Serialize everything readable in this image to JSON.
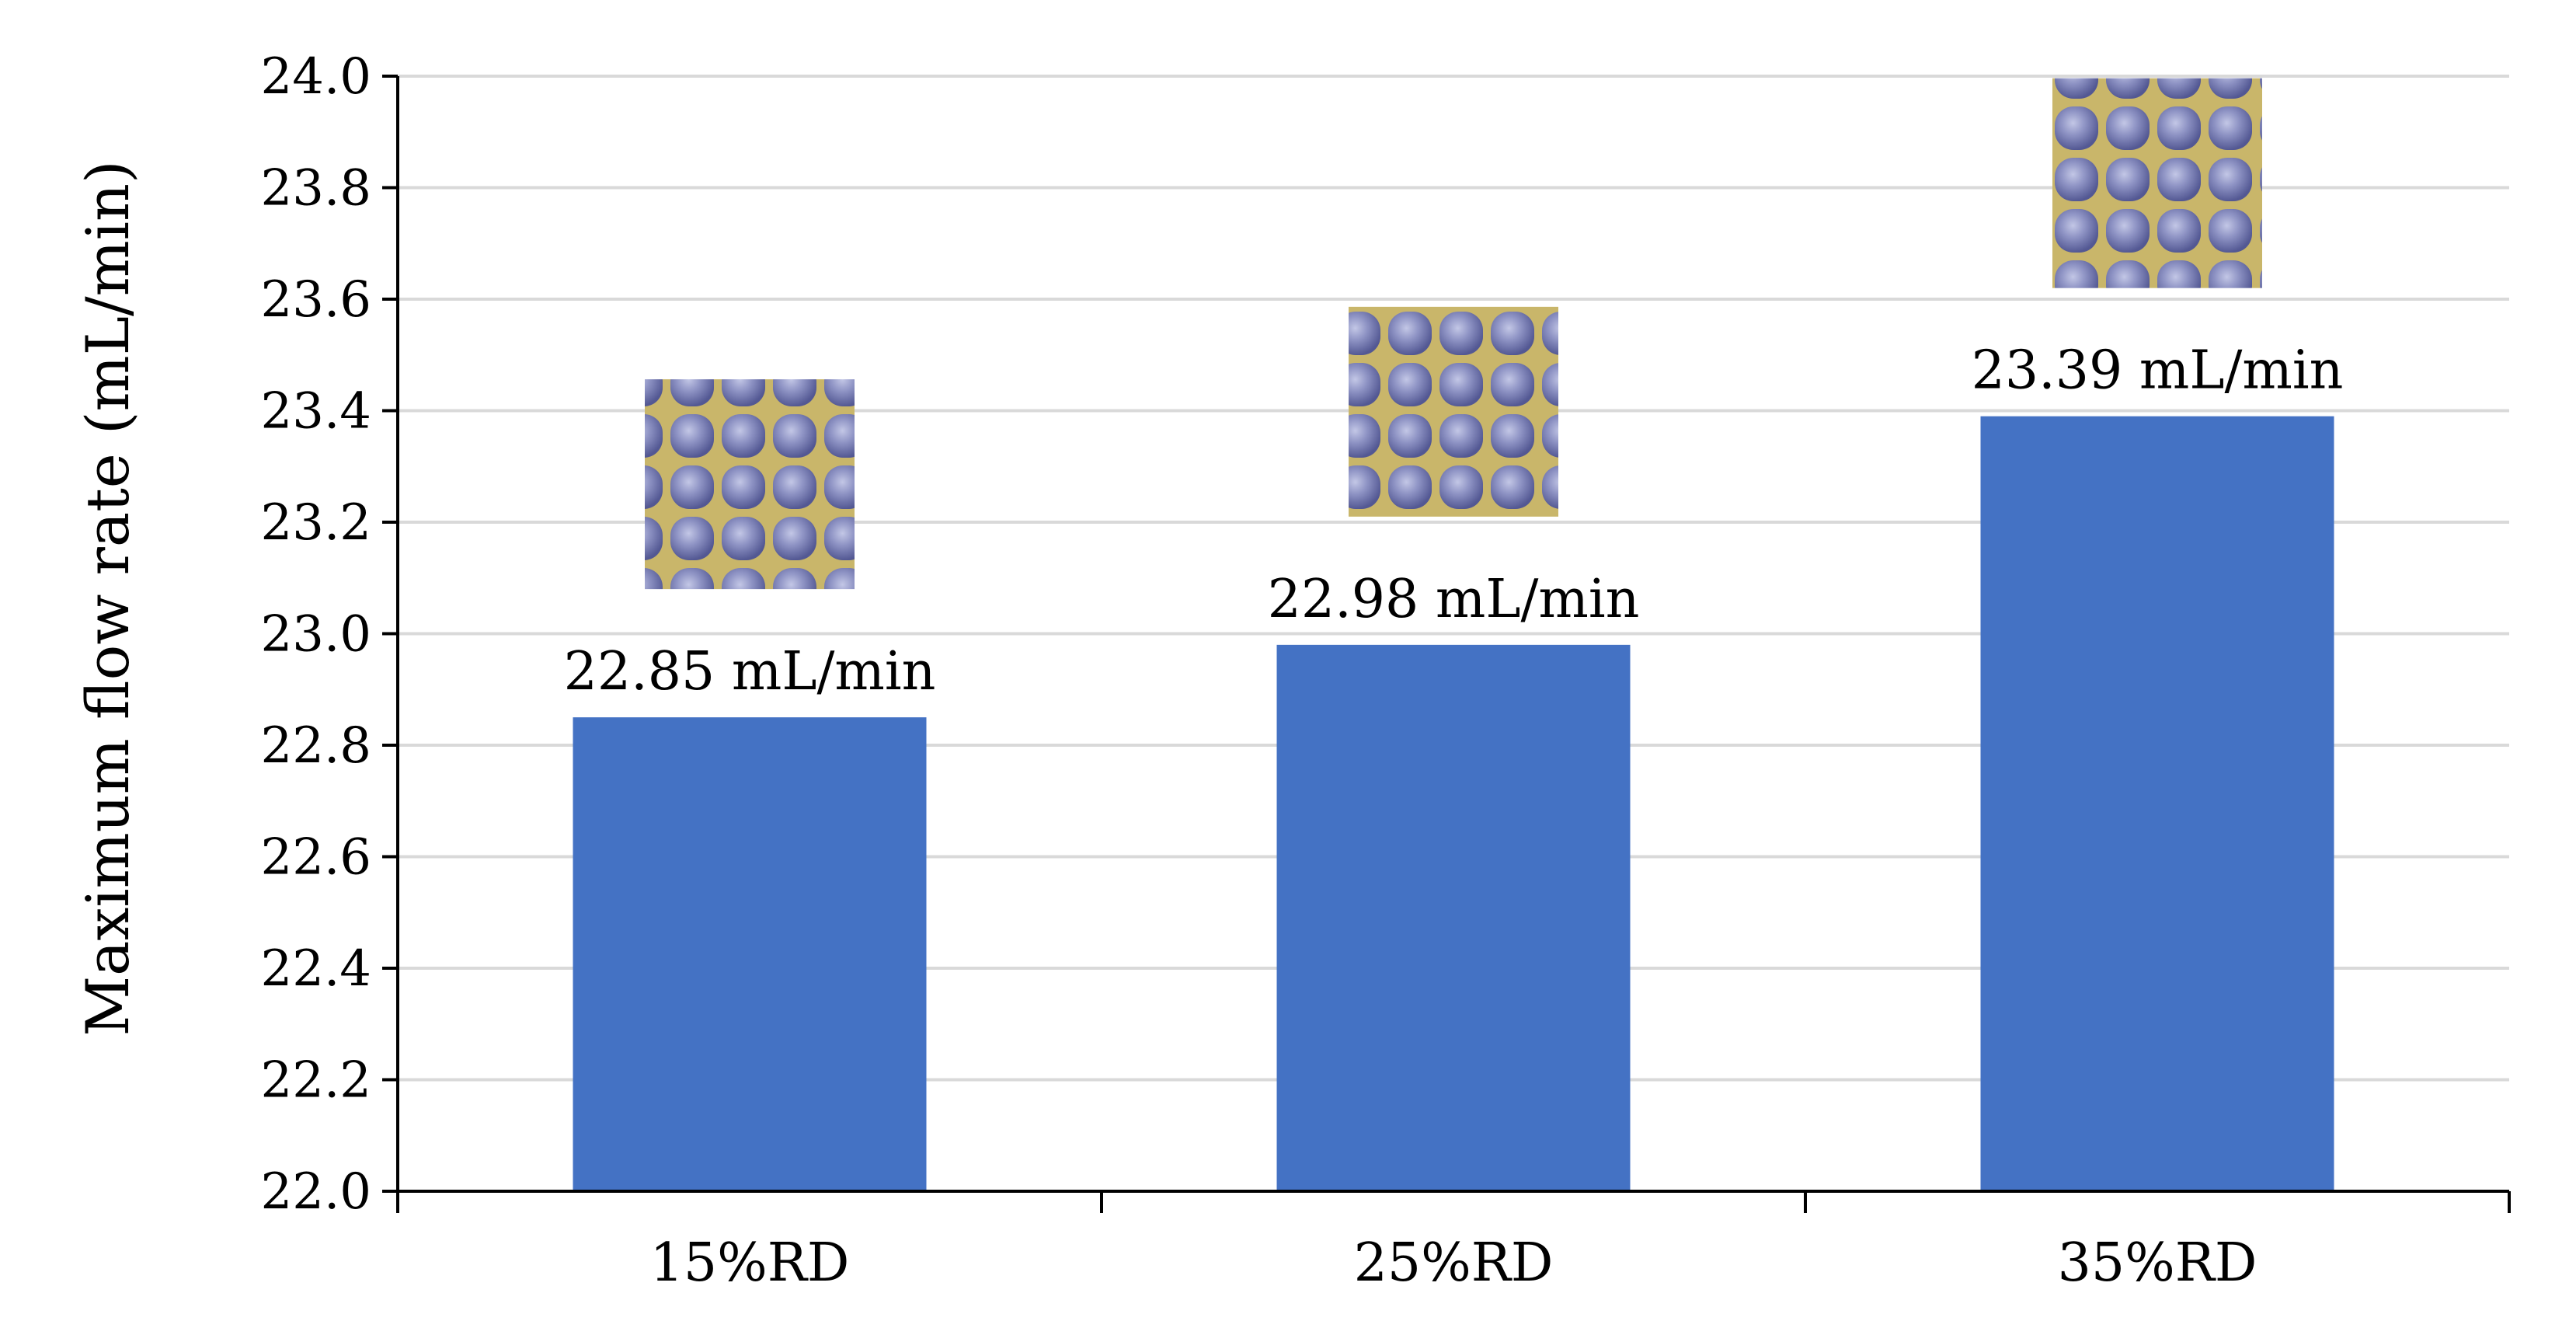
{
  "chart_data": {
    "type": "bar",
    "categories": [
      "15%RD",
      "25%RD",
      "35%RD"
    ],
    "values": [
      22.85,
      22.98,
      23.39
    ],
    "data_labels": [
      "22.85 mL/min",
      "22.98 mL/min",
      "23.39 mL/min"
    ],
    "title": "",
    "xlabel": "",
    "ylabel": "Maximum flow rate (mL/min)",
    "ylim": [
      22.0,
      24.0
    ],
    "yticks": [
      "22.0",
      "22.2",
      "22.4",
      "22.6",
      "22.8",
      "23.0",
      "23.2",
      "23.4",
      "23.6",
      "23.8",
      "24.0"
    ],
    "grid": true,
    "legend": "none",
    "bar_color": "#4472C4",
    "grid_color": "#D9D9D9",
    "inset_images": [
      {
        "category": "15%RD",
        "description": "lattice-structure-thumbnail"
      },
      {
        "category": "25%RD",
        "description": "lattice-structure-thumbnail"
      },
      {
        "category": "35%RD",
        "description": "lattice-structure-thumbnail"
      }
    ],
    "inset_colors": {
      "background": "#C9B66A",
      "sphere": "#7D82B5",
      "sphere_highlight": "#B9BEE0",
      "sphere_shadow": "#565C92"
    }
  }
}
